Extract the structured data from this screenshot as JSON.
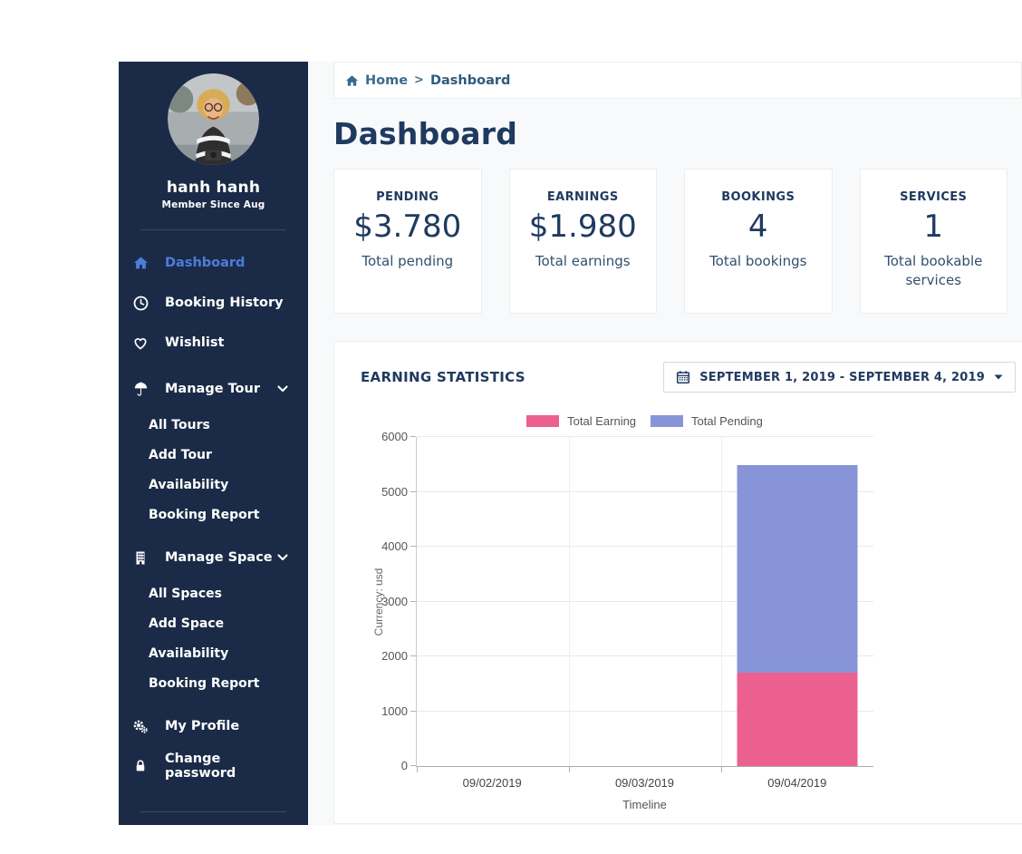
{
  "sidebar": {
    "user": {
      "name": "hanh hanh",
      "member_since": "Member Since Aug"
    },
    "items": {
      "dashboard": "Dashboard",
      "booking_history": "Booking History",
      "wishlist": "Wishlist",
      "manage_tour": "Manage Tour",
      "tour_sub": [
        "All Tours",
        "Add Tour",
        "Availability",
        "Booking Report"
      ],
      "manage_space": "Manage Space",
      "space_sub": [
        "All Spaces",
        "Add Space",
        "Availability",
        "Booking Report"
      ],
      "my_profile": "My Profile",
      "change_password": "Change password"
    }
  },
  "breadcrumb": {
    "home": "Home",
    "separator": ">",
    "current": "Dashboard"
  },
  "page": {
    "title": "Dashboard"
  },
  "cards": [
    {
      "label": "PENDING",
      "value": "$3.780",
      "caption": "Total pending"
    },
    {
      "label": "EARNINGS",
      "value": "$1.980",
      "caption": "Total earnings"
    },
    {
      "label": "BOOKINGS",
      "value": "4",
      "caption": "Total bookings"
    },
    {
      "label": "SERVICES",
      "value": "1",
      "caption": "Total bookable services"
    }
  ],
  "panel": {
    "title": "EARNING STATISTICS",
    "date_range": "SEPTEMBER 1, 2019 - SEPTEMBER 4, 2019"
  },
  "colors": {
    "sidebar_bg": "#1b2b47",
    "active_link": "#4d7cdb",
    "heading": "#1f3a60",
    "earning_pink": "#ec6090",
    "pending_purple": "#8894d8"
  },
  "chart_data": {
    "type": "bar",
    "stacked": true,
    "categories": [
      "09/02/2019",
      "09/03/2019",
      "09/04/2019"
    ],
    "series": [
      {
        "name": "Total Earning",
        "color": "#ec6090",
        "values": [
          0,
          0,
          1700
        ]
      },
      {
        "name": "Total Pending",
        "color": "#8894d8",
        "values": [
          0,
          0,
          3780
        ]
      }
    ],
    "title": "EARNING STATISTICS",
    "xlabel": "Timeline",
    "ylabel": "Currency: usd",
    "ylim": [
      0,
      6000
    ],
    "ytick_step": 1000,
    "legend_position": "top",
    "grid": true
  }
}
